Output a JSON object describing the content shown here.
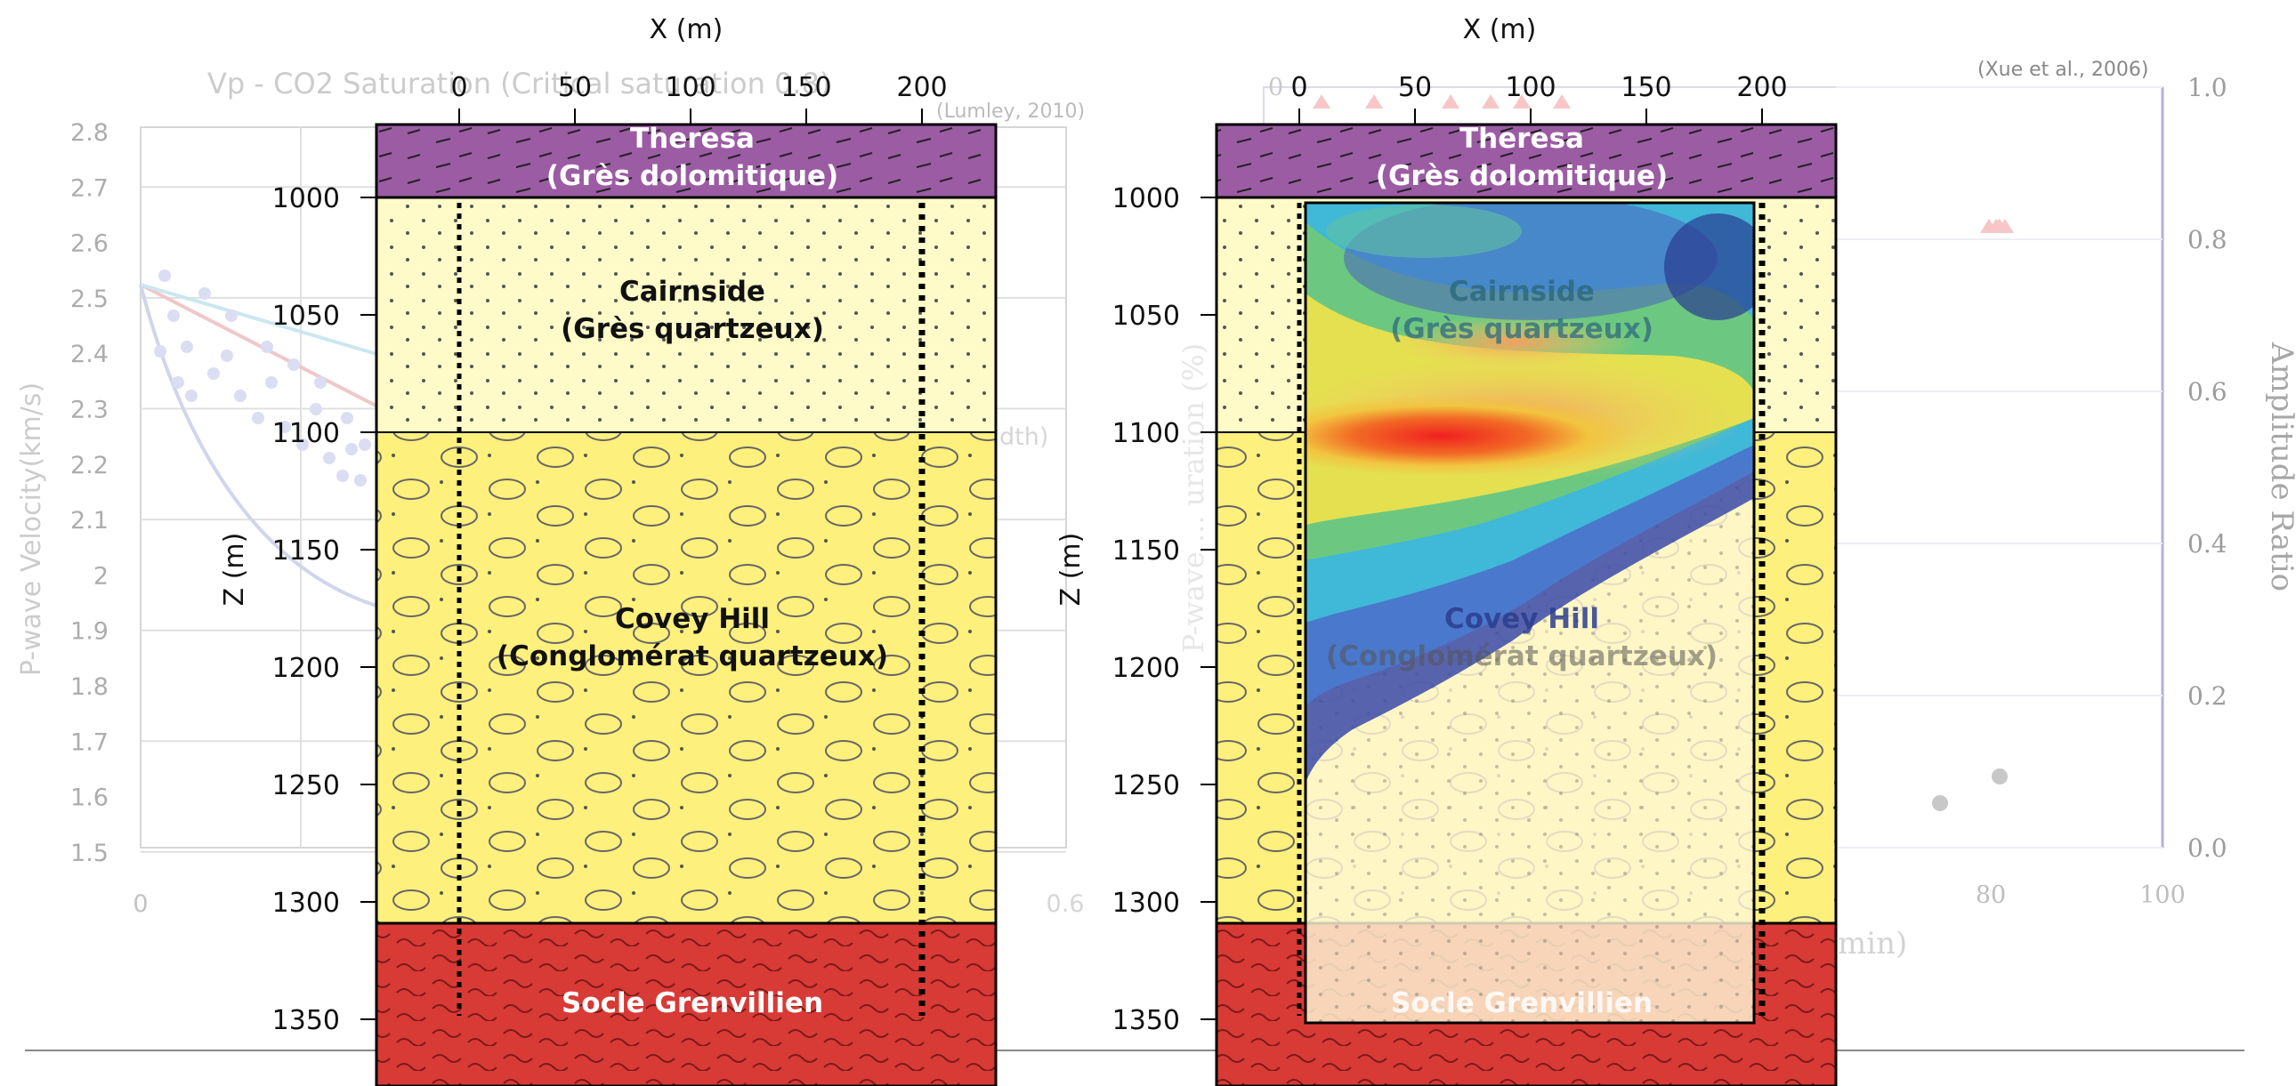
{
  "citations": {
    "left": "(Lumley, 2010)",
    "right": "(Xue et al., 2006)"
  },
  "bg_plot_left": {
    "title": "Vp - CO2 Saturation (Critical saturation 0.8)",
    "ylabel": "P-wave Velocity(km/s)",
    "yticks": [
      "2.8",
      "2.7",
      "2.6",
      "2.5",
      "2.4",
      "2.3",
      "2.2",
      "2.1",
      "2",
      "1.9",
      "1.8",
      "1.7",
      "1.6",
      "1.5"
    ],
    "xticks": [
      "0",
      "0.6"
    ],
    "legend_fragment": "dth)"
  },
  "bg_plot_right": {
    "ylabel": "Amplitude Ratio",
    "yticks": [
      "1.0",
      "0.8",
      "0.6",
      "0.4",
      "0.2",
      "0.0"
    ],
    "xticks": [
      "80",
      "100"
    ],
    "top_tick": "0",
    "xlabel_fragment": "min)",
    "left_label_fragment": "P-wave ... uration (%)"
  },
  "sections": {
    "xlabel": "X (m)",
    "zlabel": "Z (m)",
    "xticks": [
      "0",
      "50",
      "100",
      "150",
      "200"
    ],
    "zticks": [
      "1000",
      "1050",
      "1100",
      "1150",
      "1200",
      "1250",
      "1300",
      "1350"
    ],
    "layers": {
      "theresa_name": "Theresa",
      "theresa_lith": "(Grès dolomitique)",
      "cairnside_name": "Cairnside",
      "cairnside_lith": "(Grès quartzeux)",
      "coveyhill_name": "Covey Hill",
      "coveyhill_lith": "(Conglomérat quartzeux)",
      "socle_name": "Socle Grenvillien"
    }
  },
  "colors": {
    "theresa": "#9b5ca4",
    "cairnside": "#fffbc8",
    "coveyhill": "#fdf07c",
    "socle": "#d83a36",
    "well_marker": "#000000"
  }
}
